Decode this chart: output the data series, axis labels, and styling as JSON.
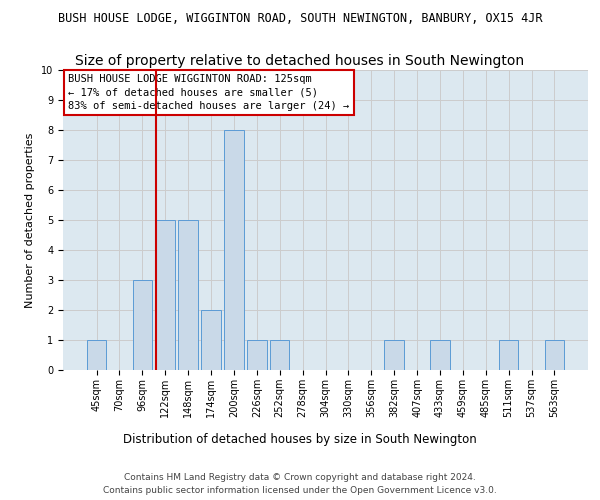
{
  "suptitle": "BUSH HOUSE LODGE, WIGGINTON ROAD, SOUTH NEWINGTON, BANBURY, OX15 4JR",
  "title": "Size of property relative to detached houses in South Newington",
  "xlabel": "Distribution of detached houses by size in South Newington",
  "ylabel": "Number of detached properties",
  "categories": [
    "45sqm",
    "70sqm",
    "96sqm",
    "122sqm",
    "148sqm",
    "174sqm",
    "200sqm",
    "226sqm",
    "252sqm",
    "278sqm",
    "304sqm",
    "330sqm",
    "356sqm",
    "382sqm",
    "407sqm",
    "433sqm",
    "459sqm",
    "485sqm",
    "511sqm",
    "537sqm",
    "563sqm"
  ],
  "values": [
    1,
    0,
    3,
    5,
    5,
    2,
    8,
    1,
    1,
    0,
    0,
    0,
    0,
    1,
    0,
    1,
    0,
    0,
    1,
    0,
    1
  ],
  "bar_color": "#c9d9e8",
  "bar_edgecolor": "#5b9bd5",
  "vline_x_index": 3,
  "vline_color": "#cc0000",
  "annotation_lines": [
    "BUSH HOUSE LODGE WIGGINTON ROAD: 125sqm",
    "← 17% of detached houses are smaller (5)",
    "83% of semi-detached houses are larger (24) →"
  ],
  "annotation_box_edgecolor": "#cc0000",
  "ylim": [
    0,
    10
  ],
  "yticks": [
    0,
    1,
    2,
    3,
    4,
    5,
    6,
    7,
    8,
    9,
    10
  ],
  "grid_color": "#cccccc",
  "bg_color": "#dce8f0",
  "footer_line1": "Contains HM Land Registry data © Crown copyright and database right 2024.",
  "footer_line2": "Contains public sector information licensed under the Open Government Licence v3.0.",
  "suptitle_fontsize": 8.5,
  "title_fontsize": 10,
  "xlabel_fontsize": 8.5,
  "ylabel_fontsize": 8,
  "tick_fontsize": 7,
  "footer_fontsize": 6.5,
  "annotation_fontsize": 7.5
}
